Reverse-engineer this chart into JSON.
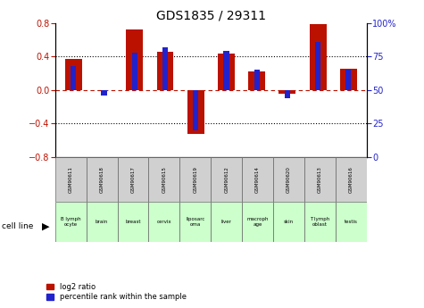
{
  "title": "GDS1835 / 29311",
  "samples": [
    "GSM90611",
    "GSM90618",
    "GSM90617",
    "GSM90615",
    "GSM90619",
    "GSM90612",
    "GSM90614",
    "GSM90620",
    "GSM90613",
    "GSM90616"
  ],
  "cell_lines": [
    "B lymph\nocyte",
    "brain",
    "breast",
    "cervix",
    "liposarc\noma",
    "liver",
    "macroph\nage",
    "skin",
    "T lymph\noblast",
    "testis"
  ],
  "log2_ratio": [
    0.37,
    0.0,
    0.72,
    0.46,
    -0.52,
    0.44,
    0.22,
    -0.04,
    0.79,
    0.25
  ],
  "percentile_rank": [
    68,
    46,
    78,
    82,
    20,
    79,
    65,
    44,
    86,
    65
  ],
  "ylim_left": [
    -0.8,
    0.8
  ],
  "ylim_right": [
    0,
    100
  ],
  "y_ticks_left": [
    -0.8,
    -0.4,
    0.0,
    0.4,
    0.8
  ],
  "y_ticks_right": [
    0,
    25,
    50,
    75,
    100
  ],
  "red_color": "#bb1100",
  "blue_color": "#2222cc",
  "red_bar_width": 0.55,
  "blue_bar_width": 0.18,
  "legend_red": "log2 ratio",
  "legend_blue": "percentile rank within the sample",
  "gsm_row_facecolor": "#d0d0d0",
  "cl_row_facecolor": "#ccffcc",
  "title_fontsize": 10
}
